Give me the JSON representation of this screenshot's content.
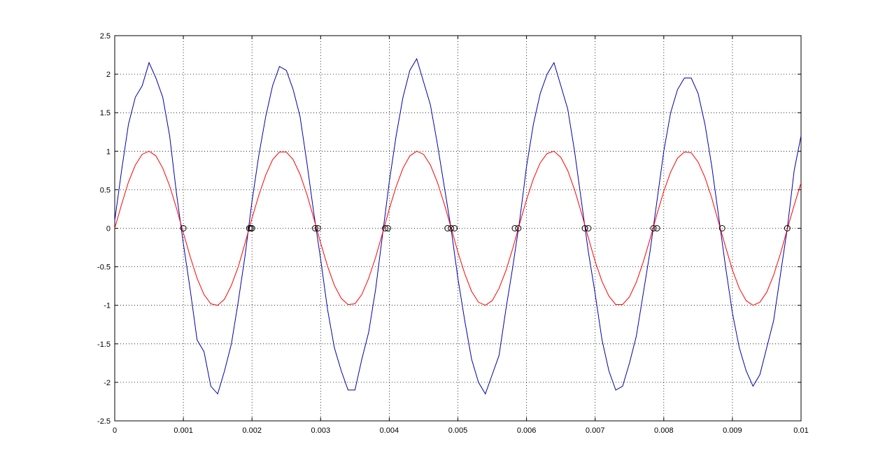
{
  "chart_data": {
    "type": "line",
    "x": [
      0,
      0.0001,
      0.0002,
      0.0003,
      0.0004,
      0.0005,
      0.0006,
      0.0007,
      0.0008,
      0.0009,
      0.001,
      0.0011,
      0.0012,
      0.0013,
      0.0014,
      0.0015,
      0.0016,
      0.0017,
      0.0018,
      0.0019,
      0.002,
      0.0021,
      0.0022,
      0.0023,
      0.0024,
      0.0025,
      0.0026,
      0.0027,
      0.0028,
      0.0029,
      0.003,
      0.0031,
      0.0032,
      0.0033,
      0.0034,
      0.0035,
      0.0036,
      0.0037,
      0.0038,
      0.0039,
      0.004,
      0.0041,
      0.0042,
      0.0043,
      0.0044,
      0.0045,
      0.0046,
      0.0047,
      0.0048,
      0.0049,
      0.005,
      0.0051,
      0.0052,
      0.0053,
      0.0054,
      0.0055,
      0.0056,
      0.0057,
      0.0058,
      0.0059,
      0.006,
      0.0061,
      0.0062,
      0.0063,
      0.0064,
      0.0065,
      0.0066,
      0.0067,
      0.0068,
      0.0069,
      0.007,
      0.0071,
      0.0072,
      0.0073,
      0.0074,
      0.0075,
      0.0076,
      0.0077,
      0.0078,
      0.0079,
      0.008,
      0.0081,
      0.0082,
      0.0083,
      0.0084,
      0.0085,
      0.0086,
      0.0087,
      0.0088,
      0.0089,
      0.009,
      0.0091,
      0.0092,
      0.0093,
      0.0094,
      0.0095,
      0.0096,
      0.0097,
      0.0098,
      0.0099,
      0.01
    ],
    "series": [
      {
        "color": "#0000aa",
        "values": [
          0.1,
          0.75,
          1.35,
          1.7,
          1.85,
          2.15,
          1.95,
          1.7,
          1.2,
          0.45,
          -0.2,
          -0.8,
          -1.45,
          -1.6,
          -2.05,
          -2.15,
          -1.85,
          -1.5,
          -0.95,
          -0.35,
          0.35,
          0.95,
          1.45,
          1.85,
          2.1,
          2.05,
          1.8,
          1.45,
          0.85,
          0.2,
          -0.4,
          -1.05,
          -1.55,
          -1.85,
          -2.1,
          -2.1,
          -1.7,
          -1.35,
          -0.8,
          -0.1,
          0.6,
          1.2,
          1.7,
          2.05,
          2.2,
          1.9,
          1.6,
          1.1,
          0.55,
          0,
          -0.65,
          -1.2,
          -1.7,
          -2,
          -2.15,
          -1.9,
          -1.65,
          -1.05,
          -0.5,
          0.1,
          0.8,
          1.35,
          1.75,
          2,
          2.15,
          1.85,
          1.55,
          1,
          0.35,
          -0.3,
          -0.85,
          -1.45,
          -1.85,
          -2.1,
          -2.05,
          -1.75,
          -1.4,
          -0.85,
          -0.3,
          0.35,
          1,
          1.5,
          1.8,
          1.95,
          1.95,
          1.75,
          1.35,
          0.8,
          0.15,
          -0.5,
          -1.1,
          -1.55,
          -1.85,
          -2.05,
          -1.9,
          -1.55,
          -1.2,
          -0.6,
          0,
          0.75,
          1.2
        ]
      },
      {
        "color": "#ff0000",
        "values": [
          0,
          0.31,
          0.6,
          0.82,
          0.96,
          1,
          0.94,
          0.78,
          0.55,
          0.26,
          -0.06,
          -0.37,
          -0.65,
          -0.86,
          -0.98,
          -1,
          -0.92,
          -0.74,
          -0.5,
          -0.19,
          0.13,
          0.43,
          0.69,
          0.89,
          0.99,
          0.99,
          0.89,
          0.7,
          0.44,
          0.13,
          -0.19,
          -0.49,
          -0.74,
          -0.91,
          -0.99,
          -0.98,
          -0.86,
          -0.65,
          -0.38,
          -0.07,
          0.25,
          0.54,
          0.78,
          0.94,
          1,
          0.96,
          0.82,
          0.6,
          0.32,
          0.01,
          -0.31,
          -0.59,
          -0.82,
          -0.96,
          -1,
          -0.94,
          -0.78,
          -0.55,
          -0.26,
          0.06,
          0.37,
          0.64,
          0.85,
          0.97,
          1,
          0.92,
          0.75,
          0.5,
          0.2,
          -0.12,
          -0.43,
          -0.69,
          -0.88,
          -0.99,
          -0.99,
          -0.89,
          -0.7,
          -0.44,
          -0.14,
          0.18,
          0.48,
          0.73,
          0.91,
          0.99,
          0.98,
          0.86,
          0.66,
          0.39,
          0.07,
          -0.24,
          -0.54,
          -0.78,
          -0.94,
          -1,
          -0.96,
          -0.83,
          -0.61,
          -0.33,
          -0.01,
          0.3,
          0.59
        ]
      },
      {
        "color": "#000000",
        "marker": "circle",
        "line": false,
        "x": [
          0.001,
          0.00196,
          0.00198,
          0.002,
          0.00292,
          0.00296,
          0.00394,
          0.00398,
          0.00485,
          0.0049,
          0.00495,
          0.00583,
          0.00588,
          0.00685,
          0.0069,
          0.00785,
          0.0079,
          0.00885,
          0.0098
        ],
        "values": [
          0,
          0,
          0,
          0,
          0,
          0,
          0,
          0,
          0,
          0,
          0,
          0,
          0,
          0,
          0,
          0,
          0,
          0,
          0
        ]
      }
    ],
    "xlim": [
      0,
      0.01
    ],
    "xticks": [
      0,
      0.001,
      0.002,
      0.003,
      0.004,
      0.005,
      0.006,
      0.007,
      0.008,
      0.009,
      0.01
    ],
    "ylim": [
      -2.5,
      2.5
    ],
    "yticks": [
      -2.5,
      -2,
      -1.5,
      -1,
      -0.5,
      0,
      0.5,
      1,
      1.5,
      2,
      2.5
    ],
    "grid": true
  }
}
